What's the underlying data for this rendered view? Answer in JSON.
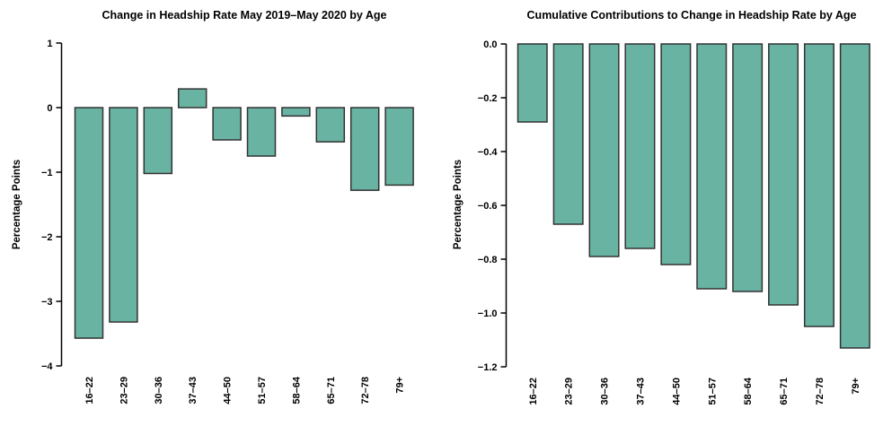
{
  "figure": {
    "background": "#ffffff"
  },
  "colors": {
    "bar_fill": "#69b3a2",
    "bar_border": "#333333",
    "axis": "#000000",
    "text": "#000000"
  },
  "chart_data": [
    {
      "type": "bar",
      "title": "Change in Headship Rate May 2019–May 2020 by Age",
      "xlabel": "",
      "ylabel": "Percentage Points",
      "categories": [
        "16–22",
        "23–29",
        "30–36",
        "37–43",
        "44–50",
        "51–57",
        "58–64",
        "65–71",
        "72–78",
        "79+"
      ],
      "values": [
        -3.57,
        -3.32,
        -1.02,
        0.29,
        -0.5,
        -0.75,
        -0.13,
        -0.53,
        -1.28,
        -1.2
      ],
      "ylim": [
        -4,
        1
      ],
      "ytick_values": [
        1,
        0,
        -1,
        -2,
        -3,
        -4
      ],
      "ytick_labels": [
        "1",
        "0",
        "−1",
        "−2",
        "−3",
        "−4"
      ],
      "grid": false,
      "legend": "none"
    },
    {
      "type": "bar",
      "title": "Cumulative Contributions to Change in Headship Rate by Age",
      "xlabel": "",
      "ylabel": "Percentage Points",
      "categories": [
        "16–22",
        "23–29",
        "30–36",
        "37–43",
        "44–50",
        "51–57",
        "58–64",
        "65–71",
        "72–78",
        "79+"
      ],
      "values": [
        -0.29,
        -0.67,
        -0.79,
        -0.76,
        -0.82,
        -0.91,
        -0.92,
        -0.97,
        -1.05,
        -1.13
      ],
      "ylim": [
        -1.2,
        0
      ],
      "ytick_values": [
        0,
        -0.2,
        -0.4,
        -0.6,
        -0.8,
        -1,
        -1.2
      ],
      "ytick_labels": [
        "0.0",
        "−0.2",
        "−0.4",
        "−0.6",
        "−0.8",
        "−1.0",
        "−1.2"
      ],
      "grid": false,
      "legend": "none"
    }
  ]
}
